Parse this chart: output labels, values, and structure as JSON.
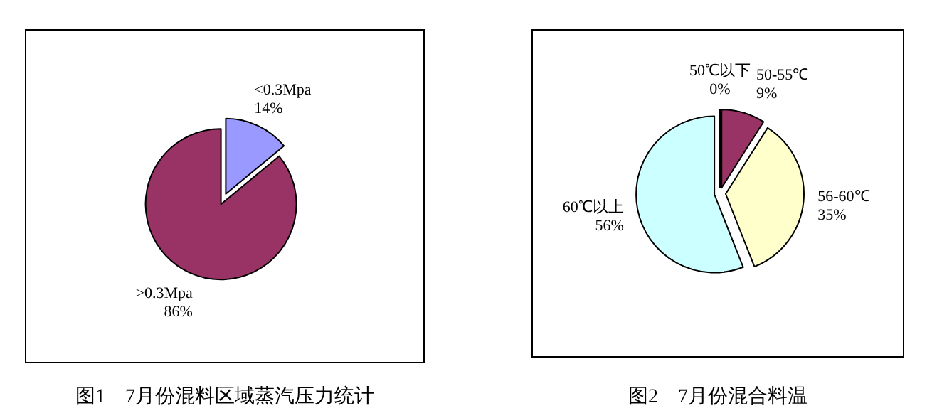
{
  "chart_data": [
    {
      "type": "pie",
      "title": "图1　7月份混料区域蒸汽压力统计",
      "categories": [
        "<0.3Mpa",
        ">0.3Mpa"
      ],
      "values": [
        14,
        86
      ],
      "colors": [
        "#9999ff",
        "#993366"
      ],
      "value_labels": [
        "14%",
        "86%"
      ]
    },
    {
      "type": "pie",
      "title": "图2　7月份混合料温",
      "categories": [
        "50℃以下",
        "50-55℃",
        "56-60℃",
        "60℃以上"
      ],
      "values": [
        0,
        9,
        35,
        56
      ],
      "colors": [
        "#9999ff",
        "#993366",
        "#ffffcc",
        "#ccffff"
      ],
      "value_labels": [
        "0%",
        "9%",
        "35%",
        "56%"
      ]
    }
  ]
}
